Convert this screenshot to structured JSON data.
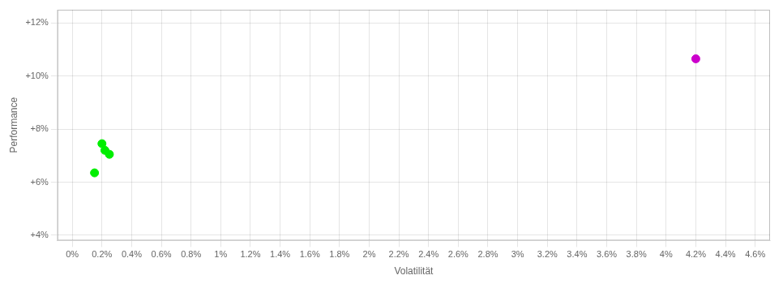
{
  "chart_data": {
    "type": "scatter",
    "xlabel": "Volatilität",
    "ylabel": "Performance",
    "xlim": [
      -0.001,
      0.047
    ],
    "ylim": [
      0.038,
      0.125
    ],
    "xticks": [
      {
        "value": 0.0,
        "label": "0%"
      },
      {
        "value": 0.002,
        "label": "0.2%"
      },
      {
        "value": 0.004,
        "label": "0.4%"
      },
      {
        "value": 0.006,
        "label": "0.6%"
      },
      {
        "value": 0.008,
        "label": "0.8%"
      },
      {
        "value": 0.01,
        "label": "1%"
      },
      {
        "value": 0.012,
        "label": "1.2%"
      },
      {
        "value": 0.014,
        "label": "1.4%"
      },
      {
        "value": 0.016,
        "label": "1.6%"
      },
      {
        "value": 0.018,
        "label": "1.8%"
      },
      {
        "value": 0.02,
        "label": "2%"
      },
      {
        "value": 0.022,
        "label": "2.2%"
      },
      {
        "value": 0.024,
        "label": "2.4%"
      },
      {
        "value": 0.026,
        "label": "2.6%"
      },
      {
        "value": 0.028,
        "label": "2.8%"
      },
      {
        "value": 0.03,
        "label": "3%"
      },
      {
        "value": 0.032,
        "label": "3.2%"
      },
      {
        "value": 0.034,
        "label": "3.4%"
      },
      {
        "value": 0.036,
        "label": "3.6%"
      },
      {
        "value": 0.038,
        "label": "3.8%"
      },
      {
        "value": 0.04,
        "label": "4%"
      },
      {
        "value": 0.042,
        "label": "4.2%"
      },
      {
        "value": 0.044,
        "label": "4.4%"
      },
      {
        "value": 0.046,
        "label": "4.6%"
      }
    ],
    "yticks": [
      {
        "value": 0.04,
        "label": "+4%"
      },
      {
        "value": 0.06,
        "label": "+6%"
      },
      {
        "value": 0.08,
        "label": "+8%"
      },
      {
        "value": 0.1,
        "label": "+10%"
      },
      {
        "value": 0.12,
        "label": "+12%"
      }
    ],
    "grid": true,
    "series": [
      {
        "color": "#00ee00",
        "x": [
          0.002,
          0.0022,
          0.0025,
          0.0015
        ],
        "values": [
          0.0745,
          0.072,
          0.0705,
          0.0635
        ]
      },
      {
        "color": "#cc00cc",
        "x": [
          0.042
        ],
        "values": [
          0.1065
        ]
      }
    ]
  }
}
